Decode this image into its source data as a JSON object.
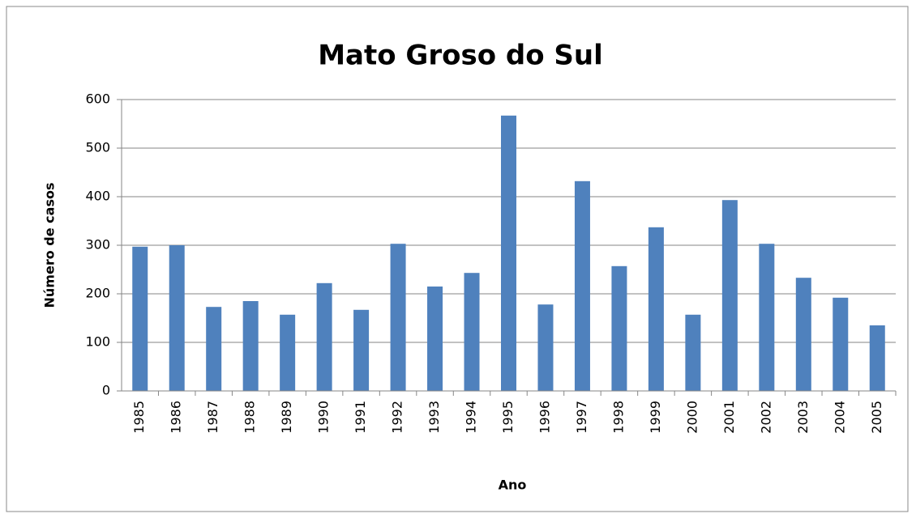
{
  "chart_data": {
    "type": "bar",
    "title": "Mato Groso do Sul",
    "x_label": "Ano",
    "y_label": "Número de casos",
    "categories": [
      "1985",
      "1986",
      "1987",
      "1988",
      "1989",
      "1990",
      "1991",
      "1992",
      "1993",
      "1994",
      "1995",
      "1996",
      "1997",
      "1998",
      "1999",
      "2000",
      "2001",
      "2002",
      "2003",
      "2004",
      "2005"
    ],
    "values": [
      297,
      300,
      173,
      185,
      157,
      222,
      167,
      303,
      215,
      243,
      567,
      178,
      432,
      257,
      337,
      157,
      393,
      303,
      233,
      192,
      135
    ],
    "color": "#4f81bd",
    "ylim": [
      0,
      600
    ],
    "yticks": [
      0,
      100,
      200,
      300,
      400,
      500,
      600
    ],
    "grid": true
  }
}
